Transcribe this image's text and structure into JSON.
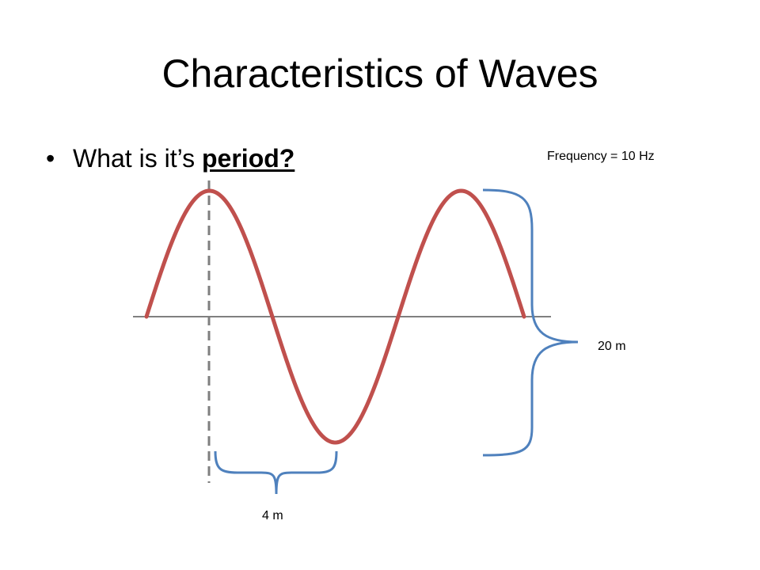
{
  "slide": {
    "title": "Characteristics of Waves",
    "bullet": {
      "marker": "•",
      "prefix": "What is it’s ",
      "emphasis": "period?"
    }
  },
  "diagram": {
    "labels": {
      "frequency": "Frequency = 10 Hz",
      "amplitude": "20 m",
      "wavelength": "4 m"
    },
    "colors": {
      "wave": "#c0504d",
      "brace": "#4f81bd",
      "axis": "#000000",
      "reference_line": "#7f7f7f"
    }
  }
}
